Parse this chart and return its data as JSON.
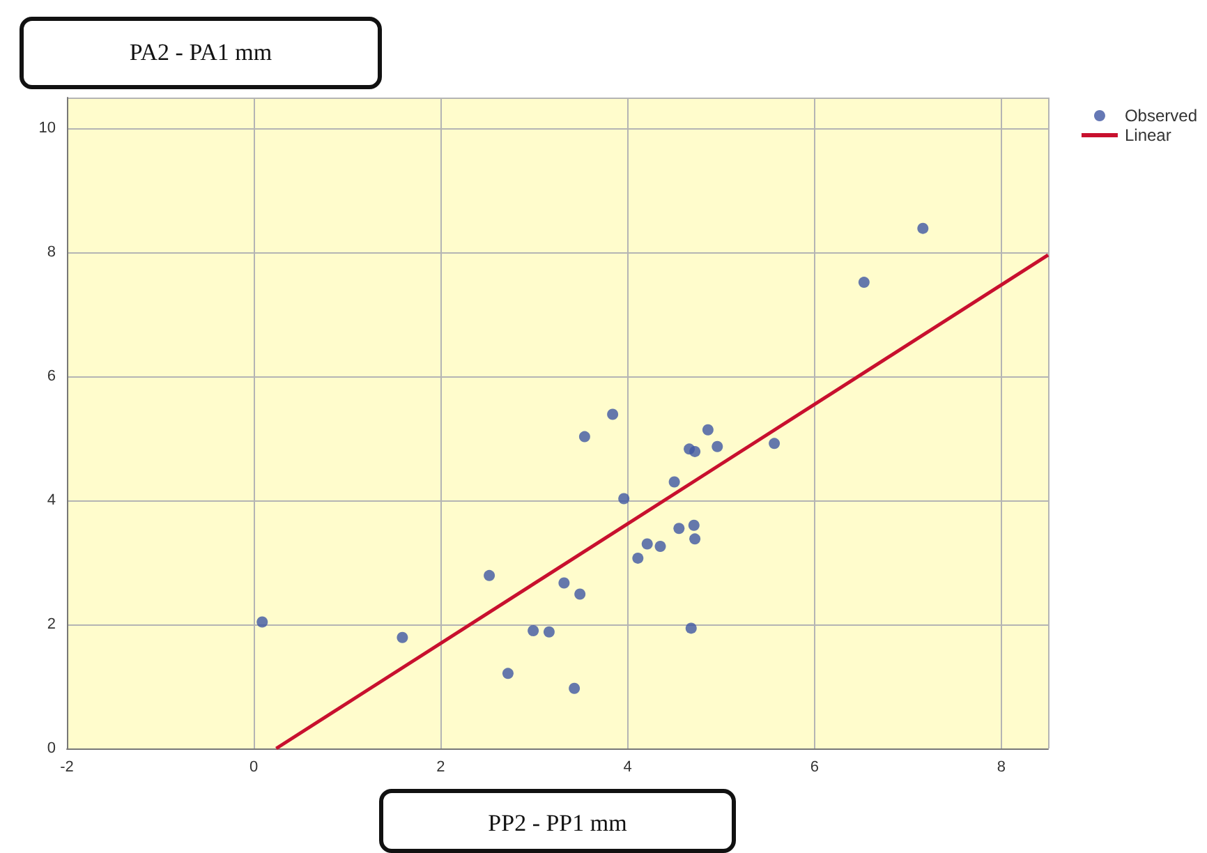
{
  "chart_data": {
    "type": "scatter",
    "xlabel": "PP2 - PP1 mm",
    "ylabel": "PA2 - PA1 mm",
    "series": [
      {
        "name": "Observed",
        "marker": "circle",
        "color": "#3f56a3",
        "x": [
          3.84,
          3.54,
          4.86,
          4.66,
          4.72,
          4.96,
          5.57,
          4.5,
          3.96,
          4.55,
          4.71,
          4.72,
          4.21,
          4.35,
          4.11,
          2.52,
          3.32,
          3.49,
          0.09,
          1.59,
          2.99,
          3.16,
          4.68,
          2.72,
          3.43,
          6.53,
          7.16
        ],
        "values": [
          5.39,
          5.03,
          5.14,
          4.83,
          4.79,
          4.87,
          4.92,
          4.3,
          4.03,
          3.55,
          3.6,
          3.38,
          3.3,
          3.26,
          3.07,
          2.79,
          2.67,
          2.49,
          2.04,
          1.79,
          1.9,
          1.88,
          1.94,
          1.21,
          0.97,
          7.52,
          8.39
        ]
      },
      {
        "name": "Linear",
        "type": "line",
        "marker": "none",
        "color": "#c8102e",
        "x": [
          0.24,
          8.5
        ],
        "values": [
          0,
          7.96
        ]
      }
    ],
    "xlim": [
      -2,
      8.5
    ],
    "xticks": [
      -2,
      0,
      2,
      4,
      6,
      8
    ],
    "ylim": [
      0,
      10.5
    ],
    "yticks": [
      0,
      2,
      4,
      6,
      8,
      10
    ],
    "grid": true,
    "legend": "top right",
    "line_style": "solid"
  }
}
